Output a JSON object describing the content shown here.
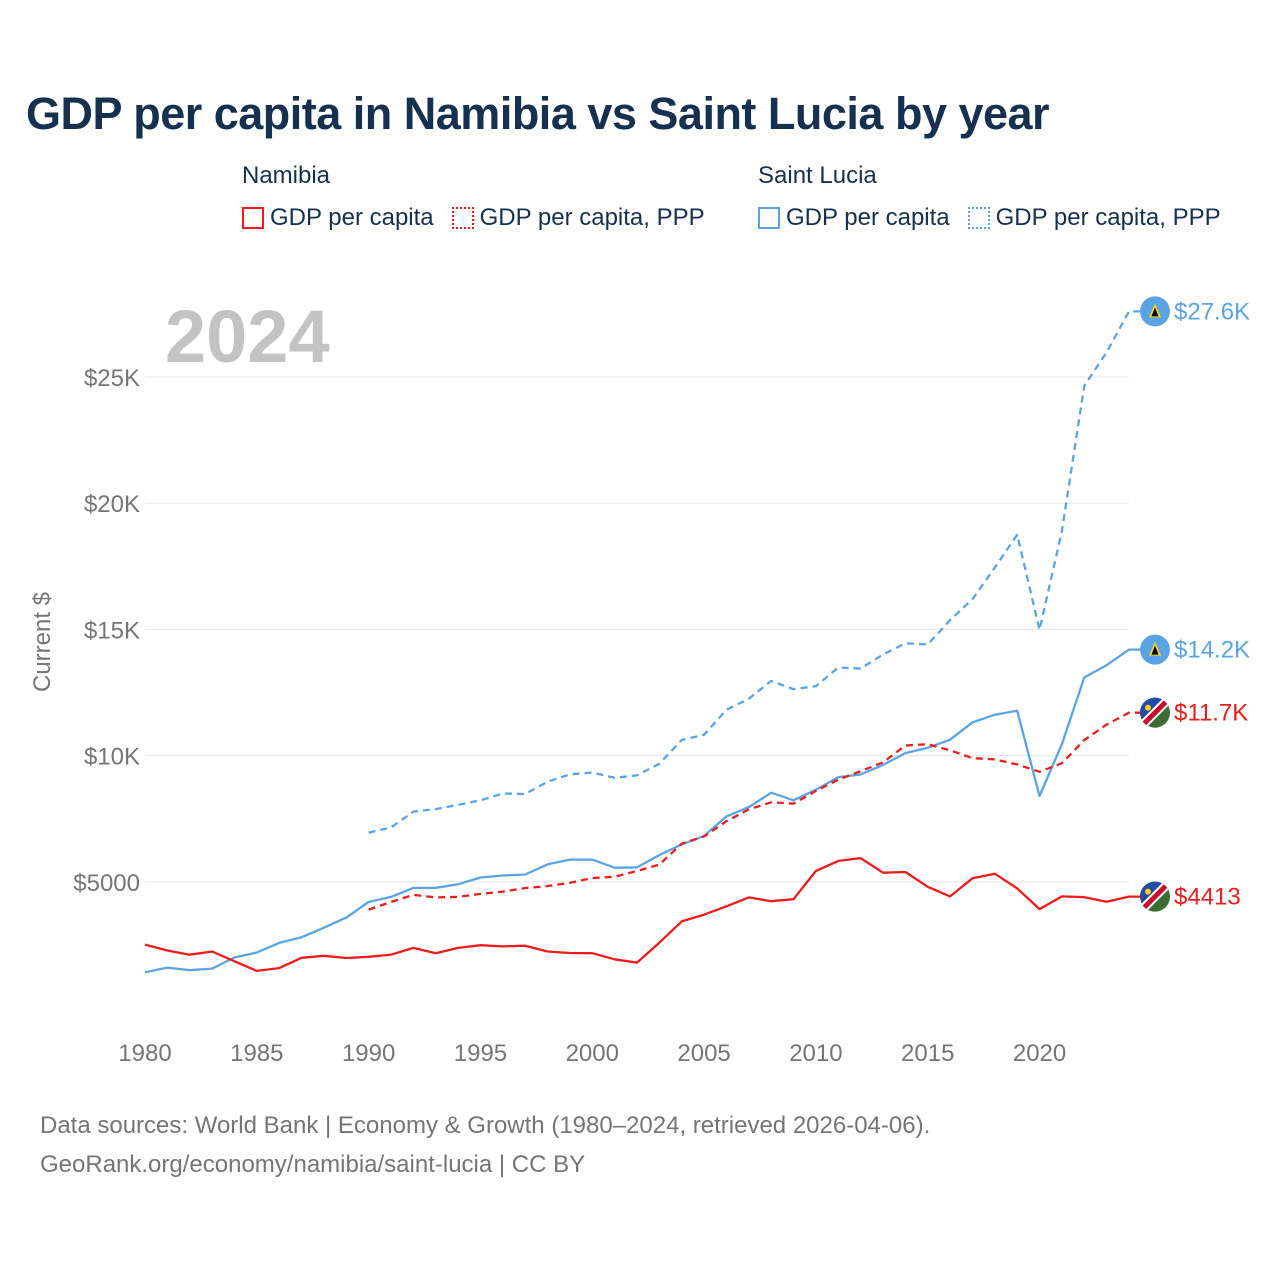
{
  "title": "GDP per capita in Namibia vs Saint Lucia by year",
  "legend": {
    "groups": [
      {
        "country": "Namibia",
        "color": "#ee1c1c",
        "items": [
          "GDP per capita",
          "GDP per capita, PPP"
        ]
      },
      {
        "country": "Saint Lucia",
        "color": "#5aa4e6",
        "items": [
          "GDP per capita",
          "GDP per capita, PPP"
        ]
      }
    ]
  },
  "footer": {
    "line1": "Data sources: World Bank | Economy & Growth (1980–2024, retrieved 2026-04-06).",
    "line2": "GeoRank.org/economy/namibia/saint-lucia | CC BY"
  },
  "chart_data": {
    "type": "line",
    "year_label": "2024",
    "ylabel": "Current $",
    "xlim": [
      1980,
      2024
    ],
    "ylim": [
      0,
      25000
    ],
    "xticks": [
      1980,
      1985,
      1990,
      1995,
      2000,
      2005,
      2010,
      2015,
      2020
    ],
    "yticks": [
      {
        "value": 5000,
        "label": "$5000"
      },
      {
        "value": 10000,
        "label": "$10K"
      },
      {
        "value": 15000,
        "label": "$15K"
      },
      {
        "value": 20000,
        "label": "$20K"
      },
      {
        "value": 25000,
        "label": "$25K"
      }
    ],
    "series": [
      {
        "name": "Saint Lucia GDP per capita, PPP",
        "country": "Saint Lucia",
        "color": "#5aa4e6",
        "dashed": true,
        "start": 1990,
        "end_label": "$27.6K",
        "values": [
          6950,
          7150,
          7780,
          7880,
          8050,
          8230,
          8500,
          8480,
          8960,
          9260,
          9330,
          9120,
          9220,
          9680,
          10620,
          10830,
          11820,
          12250,
          12960,
          12630,
          12750,
          13490,
          13450,
          14000,
          14450,
          14400,
          15370,
          16200,
          17450,
          18750,
          14980,
          18900,
          24650,
          25980,
          27600
        ]
      },
      {
        "name": "Saint Lucia GDP per capita",
        "country": "Saint Lucia",
        "color": "#5aa4e6",
        "dashed": false,
        "start": 1980,
        "end_label": "$14.2K",
        "values": [
          1420,
          1600,
          1500,
          1560,
          2000,
          2200,
          2580,
          2800,
          3180,
          3580,
          4200,
          4400,
          4760,
          4760,
          4900,
          5170,
          5250,
          5290,
          5690,
          5880,
          5880,
          5560,
          5570,
          6060,
          6480,
          6820,
          7590,
          7960,
          8530,
          8230,
          8650,
          9150,
          9250,
          9630,
          10100,
          10310,
          10630,
          11320,
          11620,
          11780,
          8400,
          10450,
          13100,
          13580,
          14200
        ]
      },
      {
        "name": "Namibia GDP per capita, PPP",
        "country": "Namibia",
        "color": "#ee1c1c",
        "dashed": true,
        "start": 1990,
        "end_label": "$11.7K",
        "values": [
          3900,
          4200,
          4480,
          4380,
          4400,
          4520,
          4610,
          4750,
          4830,
          4960,
          5150,
          5200,
          5430,
          5680,
          6510,
          6800,
          7400,
          7870,
          8150,
          8100,
          8600,
          9050,
          9380,
          9730,
          10400,
          10450,
          10210,
          9900,
          9850,
          9650,
          9360,
          9700,
          10620,
          11230,
          11700
        ]
      },
      {
        "name": "Namibia GDP per capita",
        "country": "Namibia",
        "color": "#ee1c1c",
        "dashed": false,
        "start": 1980,
        "end_label": "$4413",
        "values": [
          2510,
          2280,
          2110,
          2240,
          1850,
          1470,
          1580,
          1990,
          2070,
          1980,
          2030,
          2110,
          2380,
          2170,
          2380,
          2490,
          2440,
          2470,
          2240,
          2180,
          2170,
          1930,
          1800,
          2590,
          3430,
          3700,
          4030,
          4380,
          4230,
          4310,
          5430,
          5830,
          5940,
          5360,
          5390,
          4800,
          4420,
          5140,
          5320,
          4740,
          3920,
          4420,
          4390,
          4210,
          4413
        ]
      }
    ]
  }
}
